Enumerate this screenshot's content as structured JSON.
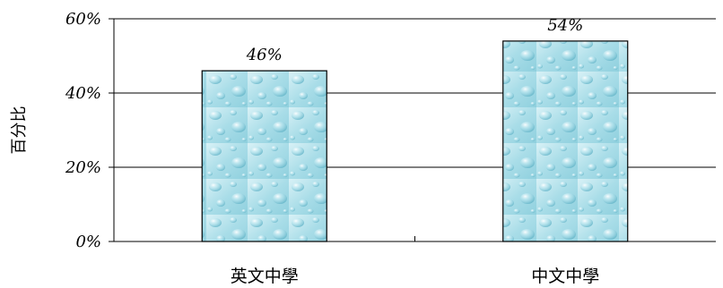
{
  "chart_data": {
    "type": "bar",
    "title": "",
    "xlabel": "",
    "ylabel": "百分比",
    "categories": [
      "英文中學",
      "中文中學"
    ],
    "values": [
      46,
      54
    ],
    "data_labels": [
      "46%",
      "54%"
    ],
    "ylim": [
      0,
      60
    ],
    "yticks": [
      0,
      20,
      40,
      60
    ],
    "ytick_labels": [
      "0%",
      "20%",
      "40%",
      "60%"
    ],
    "grid": true,
    "legend": "none",
    "bar_fill": "water-droplet texture",
    "colors": {
      "bar_base": "#a9dde8",
      "bar_highlight": "#e6f7fb",
      "bar_shadow": "#6fbccd",
      "bar_outline": "#000000",
      "axis": "#000000"
    }
  }
}
